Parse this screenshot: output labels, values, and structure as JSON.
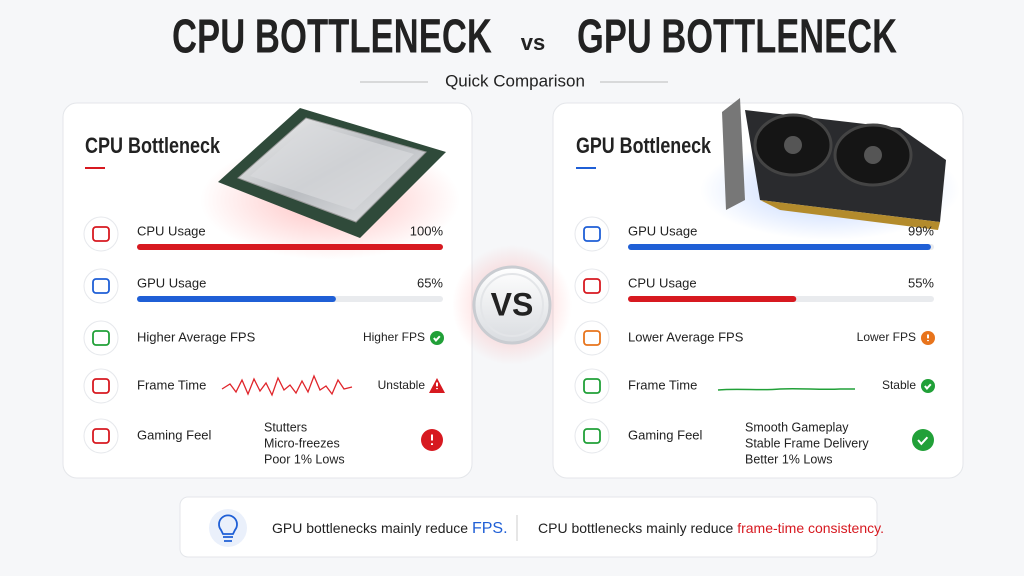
{
  "title": {
    "left": "CPU BOTTLENECK",
    "vs": "vs",
    "right": "GPU BOTTLENECK"
  },
  "subtitle": "Quick Comparison",
  "scale": [
    0,
    100
  ],
  "vs_badge": "VS",
  "cards": [
    {
      "title": "CPU Bottleneck",
      "color": "#d71920",
      "usage": [
        {
          "label": "CPU Usage",
          "value": 100,
          "value_label": "100%",
          "color": "#d71920"
        },
        {
          "label": "GPU Usage",
          "value": 65,
          "value_label": "65%",
          "color": "#1f5fd6"
        }
      ],
      "fps": {
        "label": "Higher Average FPS",
        "status": "Higher FPS",
        "color": "#21a038"
      },
      "frame_time": {
        "label": "Frame Time",
        "status": "Unstable",
        "color": "#d71920"
      },
      "gaming_feel": {
        "label": "Gaming Feel",
        "notes": [
          "Stutters",
          "Micro-freezes",
          "Poor 1% Lows"
        ],
        "color": "#d71920"
      }
    },
    {
      "title": "GPU Bottleneck",
      "color": "#1f5fd6",
      "usage": [
        {
          "label": "GPU Usage",
          "value": 99,
          "value_label": "99%",
          "color": "#1f5fd6"
        },
        {
          "label": "CPU Usage",
          "value": 55,
          "value_label": "55%",
          "color": "#d71920"
        }
      ],
      "fps": {
        "label": "Lower Average FPS",
        "status": "Lower FPS",
        "color": "#e8741c"
      },
      "frame_time": {
        "label": "Frame Time",
        "status": "Stable",
        "color": "#21a038"
      },
      "gaming_feel": {
        "label": "Gaming Feel",
        "notes": [
          "Smooth Gameplay",
          "Stable Frame Delivery",
          "Better 1% Lows"
        ],
        "color": "#21a038"
      }
    }
  ],
  "footer": {
    "gpu": {
      "text": "GPU bottlenecks mainly reduce",
      "highlight": "FPS.",
      "color": "#1f5fd6"
    },
    "cpu": {
      "text": "CPU bottlenecks mainly reduce",
      "highlight": "frame-time consistency.",
      "color": "#d71920"
    }
  }
}
